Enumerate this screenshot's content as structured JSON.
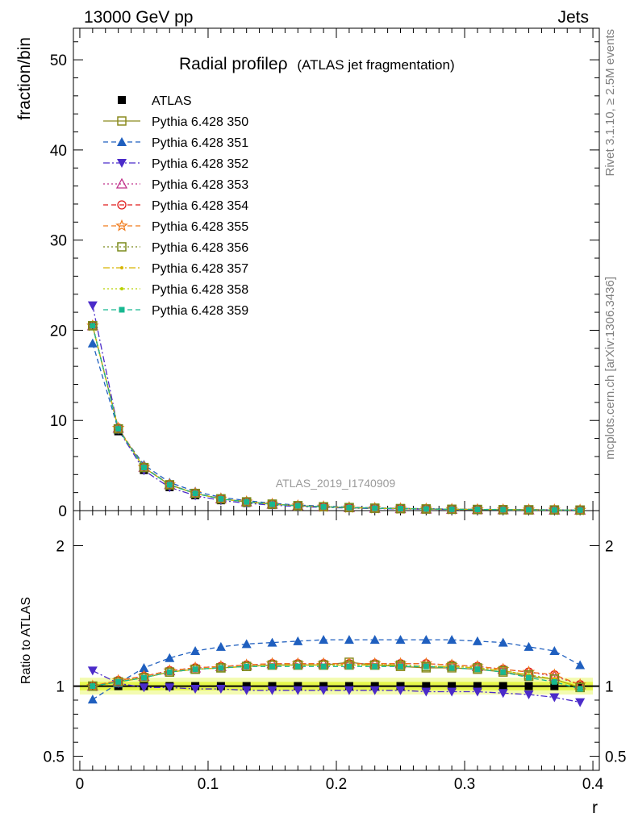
{
  "header": {
    "left": "13000 GeV pp",
    "right": "Jets"
  },
  "side_labels": {
    "rivet": "Rivet 3.1.10, ≥ 2.5M events",
    "mcplots": "mcplots.cern.ch [arXiv:1306.3436]"
  },
  "watermark": "ATLAS_2019_I1740909",
  "chart_data": {
    "type": "line",
    "title": "Radial profileρ",
    "subtitle": "(ATLAS jet fragmentation)",
    "xlabel": "r",
    "ylabel": "fraction/bin",
    "ratio_ylabel": "Ratio to ATLAS",
    "xlim": [
      -0.005,
      0.405
    ],
    "ylim": [
      0,
      53.5
    ],
    "ratio_ylim": [
      0.4,
      2.25
    ],
    "x_ticks": [
      "0",
      "0.1",
      "0.2",
      "0.3",
      "0.4"
    ],
    "y_ticks": [
      "0",
      "10",
      "20",
      "30",
      "40",
      "50"
    ],
    "ratio_ticks": [
      "0.5",
      "1",
      "2"
    ],
    "x": [
      0.01,
      0.03,
      0.05,
      0.07,
      0.09,
      0.11,
      0.13,
      0.15,
      0.17,
      0.19,
      0.21,
      0.23,
      0.25,
      0.27,
      0.29,
      0.31,
      0.33,
      0.35,
      0.37,
      0.39
    ],
    "atlas": [
      20.5,
      8.8,
      4.5,
      2.6,
      1.7,
      1.15,
      0.85,
      0.62,
      0.47,
      0.37,
      0.29,
      0.23,
      0.19,
      0.16,
      0.13,
      0.11,
      0.09,
      0.08,
      0.07,
      0.06
    ],
    "series": [
      {
        "name": "ATLAS",
        "color": "#000000",
        "marker": "square-filled",
        "dash": "none",
        "ratio": [
          1,
          1,
          1,
          1,
          1,
          1,
          1,
          1,
          1,
          1,
          1,
          1,
          1,
          1,
          1,
          1,
          1,
          1,
          1,
          1
        ]
      },
      {
        "name": "Pythia 6.428 350",
        "color": "#8a8a1e",
        "marker": "square-open",
        "dash": "solid",
        "ratio": [
          1.0,
          1.03,
          1.06,
          1.1,
          1.12,
          1.13,
          1.14,
          1.15,
          1.15,
          1.15,
          1.17,
          1.15,
          1.14,
          1.13,
          1.13,
          1.12,
          1.1,
          1.07,
          1.05,
          0.99
        ]
      },
      {
        "name": "Pythia 6.428 351",
        "color": "#1f5fbf",
        "marker": "triangle-up-filled",
        "dash": "6,4",
        "ratio": [
          0.905,
          1.02,
          1.13,
          1.2,
          1.25,
          1.28,
          1.3,
          1.31,
          1.32,
          1.33,
          1.33,
          1.33,
          1.33,
          1.33,
          1.33,
          1.32,
          1.31,
          1.28,
          1.25,
          1.15
        ]
      },
      {
        "name": "Pythia 6.428 352",
        "color": "#4b2bc9",
        "marker": "triangle-down-filled",
        "dash": "8,3,2,3",
        "ratio": [
          1.11,
          1.02,
          0.99,
          0.99,
          0.98,
          0.98,
          0.97,
          0.97,
          0.97,
          0.97,
          0.97,
          0.97,
          0.97,
          0.96,
          0.96,
          0.96,
          0.95,
          0.94,
          0.92,
          0.885
        ]
      },
      {
        "name": "Pythia 6.428 353",
        "color": "#c0308a",
        "marker": "triangle-up-open",
        "dash": "2,3",
        "ratio": [
          1.0,
          1.04,
          1.07,
          1.11,
          1.13,
          1.14,
          1.15,
          1.16,
          1.16,
          1.16,
          1.16,
          1.16,
          1.16,
          1.16,
          1.15,
          1.14,
          1.12,
          1.1,
          1.07,
          1.01
        ]
      },
      {
        "name": "Pythia 6.428 354",
        "color": "#e01a1a",
        "marker": "circle-open",
        "dash": "6,4",
        "ratio": [
          1.0,
          1.04,
          1.07,
          1.11,
          1.13,
          1.14,
          1.15,
          1.16,
          1.16,
          1.16,
          1.16,
          1.16,
          1.16,
          1.16,
          1.15,
          1.14,
          1.12,
          1.1,
          1.08,
          1.01
        ]
      },
      {
        "name": "Pythia 6.428 355",
        "color": "#f07a1a",
        "marker": "star-open",
        "dash": "6,4",
        "ratio": [
          1.0,
          1.04,
          1.07,
          1.11,
          1.13,
          1.14,
          1.15,
          1.16,
          1.16,
          1.16,
          1.16,
          1.16,
          1.16,
          1.16,
          1.15,
          1.14,
          1.12,
          1.1,
          1.08,
          1.01
        ]
      },
      {
        "name": "Pythia 6.428 356",
        "color": "#7a8a1a",
        "marker": "square-open",
        "dash": "2,3",
        "ratio": [
          1.0,
          1.03,
          1.06,
          1.1,
          1.12,
          1.13,
          1.14,
          1.15,
          1.15,
          1.15,
          1.15,
          1.15,
          1.15,
          1.14,
          1.14,
          1.13,
          1.11,
          1.08,
          1.05,
          0.99
        ]
      },
      {
        "name": "Pythia 6.428 357",
        "color": "#d6b400",
        "marker": "dot",
        "dash": "8,3,2,3",
        "ratio": [
          1.0,
          1.03,
          1.06,
          1.1,
          1.12,
          1.13,
          1.14,
          1.15,
          1.15,
          1.15,
          1.15,
          1.15,
          1.15,
          1.14,
          1.14,
          1.13,
          1.11,
          1.08,
          1.05,
          0.99
        ]
      },
      {
        "name": "Pythia 6.428 358",
        "color": "#b8d200",
        "marker": "dot",
        "dash": "2,3",
        "ratio": [
          1.0,
          1.03,
          1.06,
          1.1,
          1.12,
          1.13,
          1.14,
          1.15,
          1.15,
          1.15,
          1.15,
          1.15,
          1.15,
          1.14,
          1.14,
          1.13,
          1.11,
          1.08,
          1.05,
          0.99
        ]
      },
      {
        "name": "Pythia 6.428 359",
        "color": "#18b890",
        "marker": "square-small-filled",
        "dash": "6,4",
        "ratio": [
          1.0,
          1.03,
          1.06,
          1.1,
          1.12,
          1.13,
          1.14,
          1.14,
          1.14,
          1.14,
          1.14,
          1.14,
          1.14,
          1.14,
          1.13,
          1.12,
          1.1,
          1.06,
          1.03,
          0.98
        ]
      }
    ],
    "uncertainty_band": {
      "inner": 0.03,
      "outer": 0.06,
      "inner_color": "#e6f74a",
      "outer_color": "#f3fbb0"
    },
    "grid": false,
    "legend_position": "top-left"
  }
}
